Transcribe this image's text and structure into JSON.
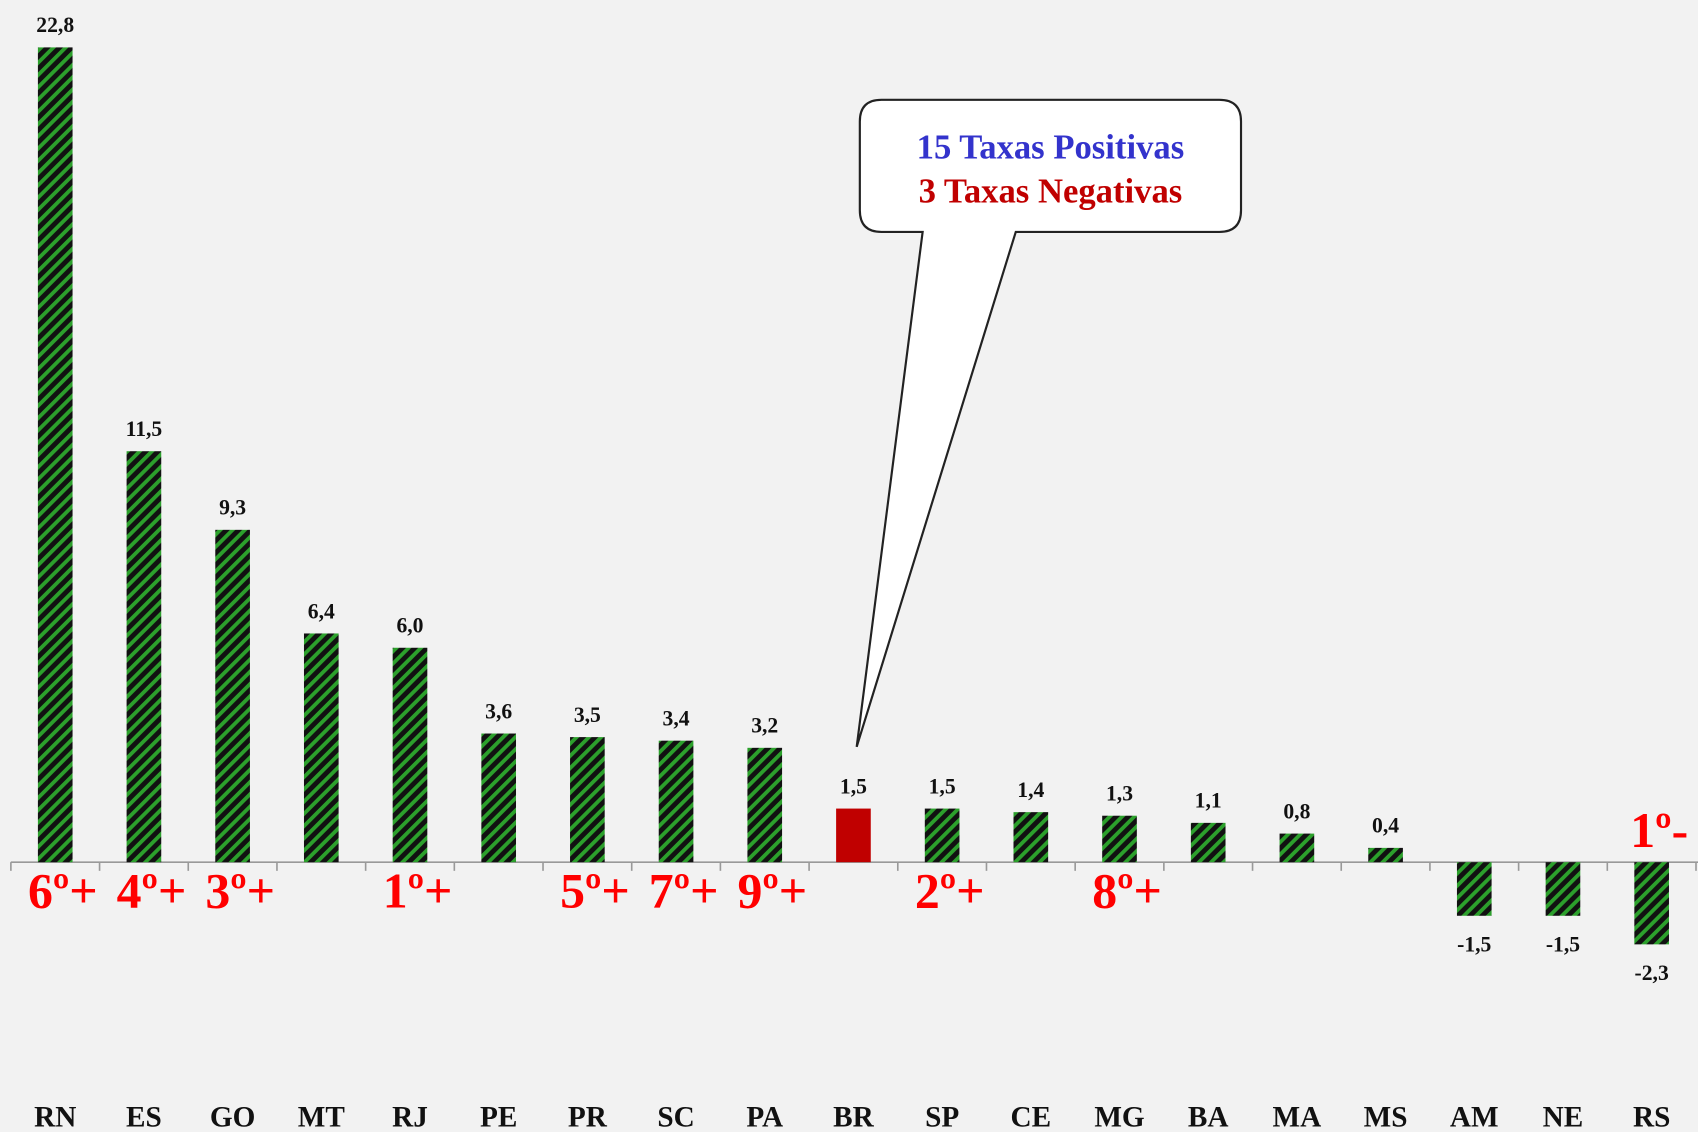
{
  "chart_data": {
    "type": "bar",
    "categories": [
      "RN",
      "ES",
      "GO",
      "MT",
      "RJ",
      "PE",
      "PR",
      "SC",
      "PA",
      "BR",
      "SP",
      "CE",
      "MG",
      "BA",
      "MA",
      "MS",
      "AM",
      "NE",
      "RS"
    ],
    "values": [
      22.8,
      11.5,
      9.3,
      6.4,
      6.0,
      3.6,
      3.5,
      3.4,
      3.2,
      1.5,
      1.5,
      1.4,
      1.3,
      1.1,
      0.8,
      0.4,
      -1.5,
      -1.5,
      -2.3
    ],
    "value_labels": [
      "22,8",
      "11,5",
      "9,3",
      "6,4",
      "6,0",
      "3,6",
      "3,5",
      "3,4",
      "3,2",
      "1,5",
      "1,5",
      "1,4",
      "1,3",
      "1,1",
      "0,8",
      "0,4",
      "-1,5",
      "-1,5",
      "-2,3"
    ],
    "colors": [
      "#2ca02c",
      "#2ca02c",
      "#2ca02c",
      "#2ca02c",
      "#2ca02c",
      "#2ca02c",
      "#2ca02c",
      "#2ca02c",
      "#2ca02c",
      "#c00000",
      "#2ca02c",
      "#2ca02c",
      "#2ca02c",
      "#2ca02c",
      "#2ca02c",
      "#2ca02c",
      "#2ca02c",
      "#2ca02c",
      "#2ca02c"
    ],
    "hatch": true,
    "ylim": [
      -3,
      24
    ],
    "grid": false,
    "annotations": [
      {
        "text": "6º+",
        "category": "RN"
      },
      {
        "text": "4º+",
        "category": "ES"
      },
      {
        "text": "3º+",
        "category": "GO"
      },
      {
        "text": "1º+",
        "category": "RJ"
      },
      {
        "text": "5º+",
        "category": "PR"
      },
      {
        "text": "7º+",
        "category": "SC"
      },
      {
        "text": "9º+",
        "category": "PA"
      },
      {
        "text": "2º+",
        "category": "SP"
      },
      {
        "text": "8º+",
        "category": "MG"
      },
      {
        "text": "1º-",
        "category": "RS"
      }
    ],
    "callout": {
      "lines": [
        {
          "text": "15 Taxas Positivas",
          "color": "#3333cc"
        },
        {
          "text": "3 Taxas Negativas",
          "color": "#c00000"
        }
      ],
      "category": "BR"
    }
  }
}
